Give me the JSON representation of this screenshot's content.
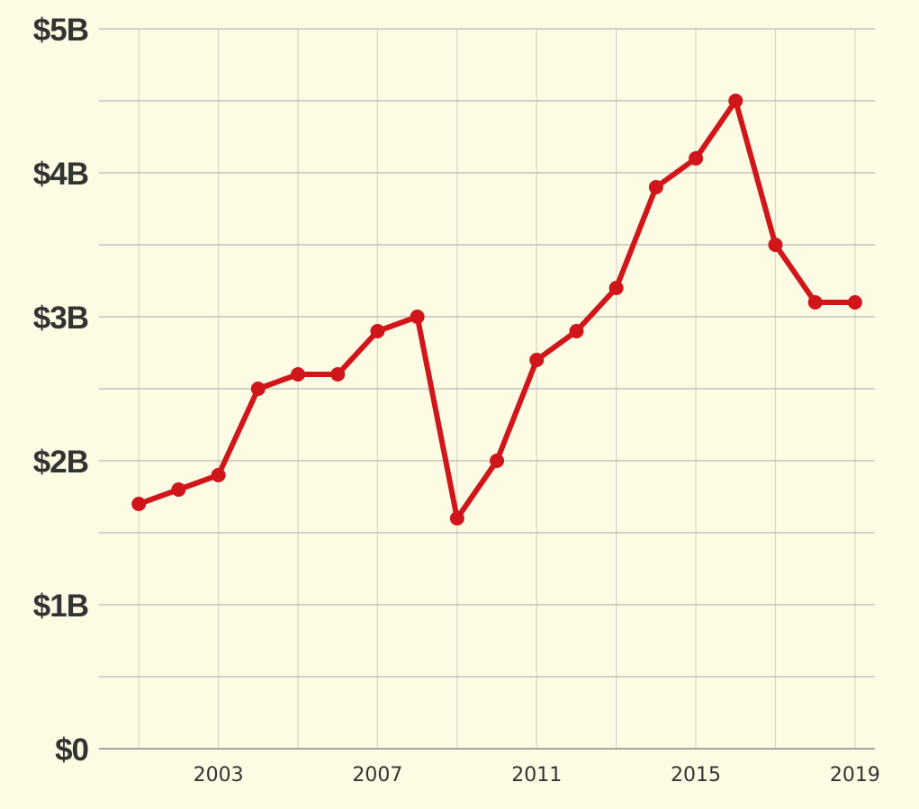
{
  "chart_data": {
    "type": "line",
    "x": [
      2001,
      2002,
      2003,
      2004,
      2005,
      2006,
      2007,
      2008,
      2009,
      2010,
      2011,
      2012,
      2013,
      2014,
      2015,
      2016,
      2017,
      2018,
      2019
    ],
    "series": [
      {
        "values": [
          1.7,
          1.8,
          1.9,
          2.5,
          2.6,
          2.6,
          2.9,
          3.0,
          1.6,
          2.0,
          2.7,
          2.9,
          3.2,
          3.9,
          4.1,
          4.5,
          3.5,
          3.1,
          3.1
        ],
        "color": "#d0161b"
      }
    ],
    "ylim": [
      0,
      5
    ],
    "xlim": [
      2000,
      2019.5
    ],
    "y_ticks": [
      {
        "value": 0,
        "label": "$0"
      },
      {
        "value": 1,
        "label": "$1B"
      },
      {
        "value": 2,
        "label": "$2B"
      },
      {
        "value": 3,
        "label": "$3B"
      },
      {
        "value": 4,
        "label": "$4B"
      },
      {
        "value": 5,
        "label": "$5B"
      }
    ],
    "y_minor_gridlines": [
      0.5,
      1.5,
      2.5,
      3.5,
      4.5
    ],
    "x_ticks": [
      {
        "value": 2003,
        "label": "2003"
      },
      {
        "value": 2007,
        "label": "2007"
      },
      {
        "value": 2011,
        "label": "2011"
      },
      {
        "value": 2015,
        "label": "2015"
      },
      {
        "value": 2019,
        "label": "2019"
      }
    ],
    "x_gridlines": [
      2001,
      2003,
      2005,
      2007,
      2009,
      2011,
      2013,
      2015,
      2017,
      2019
    ],
    "grid": true,
    "title": "",
    "xlabel": "",
    "ylabel": "",
    "colors": {
      "background": "#fdfbe4",
      "series": "#d0161b",
      "text": "#333333"
    }
  }
}
